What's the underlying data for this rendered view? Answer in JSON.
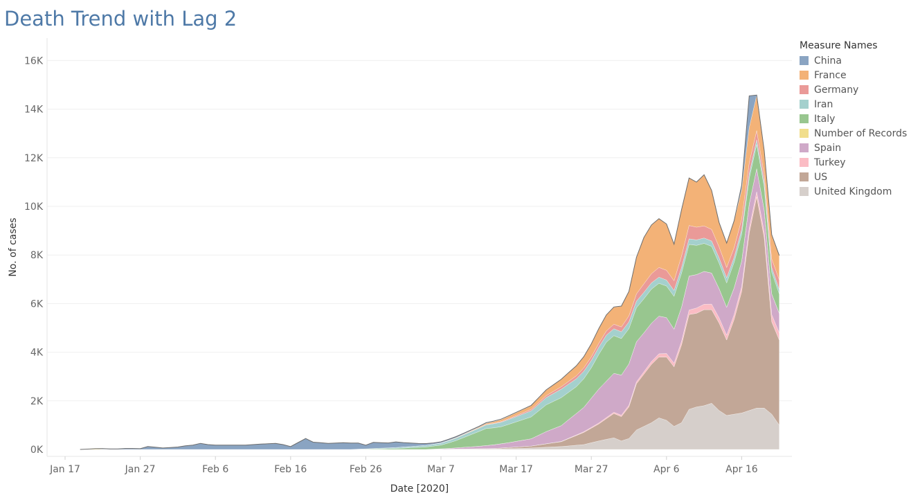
{
  "title": "Death Trend with Lag 2",
  "legend": {
    "title": "Measure Names",
    "items": [
      {
        "label": "China",
        "color": "#8aa4c2"
      },
      {
        "label": "France",
        "color": "#f3b277"
      },
      {
        "label": "Germany",
        "color": "#ea9a98"
      },
      {
        "label": "Iran",
        "color": "#a4d0cd"
      },
      {
        "label": "Italy",
        "color": "#98c68f"
      },
      {
        "label": "Number of Records",
        "color": "#f1de8c"
      },
      {
        "label": "Spain",
        "color": "#cfa9c8"
      },
      {
        "label": "Turkey",
        "color": "#fbbcc4"
      },
      {
        "label": "US",
        "color": "#c2a797"
      },
      {
        "label": "United Kingdom",
        "color": "#d6cfcb"
      }
    ]
  },
  "chart_data": {
    "type": "area",
    "stacked": true,
    "xlabel": "Date [2020]",
    "ylabel": "No. of cases",
    "ylim": [
      0,
      17000
    ],
    "yticks": [
      0,
      2000,
      4000,
      6000,
      8000,
      10000,
      12000,
      14000,
      16000
    ],
    "ytick_labels": [
      "0K",
      "2K",
      "4K",
      "6K",
      "8K",
      "10K",
      "12K",
      "14K",
      "16K"
    ],
    "xticks": [
      "2020-01-17",
      "2020-01-27",
      "2020-02-06",
      "2020-02-16",
      "2020-02-26",
      "2020-03-07",
      "2020-03-17",
      "2020-03-27",
      "2020-04-06",
      "2020-04-16"
    ],
    "xtick_labels": [
      "Jan 17",
      "Jan 27",
      "Feb 6",
      "Feb 16",
      "Feb 26",
      "Mar 7",
      "Mar 17",
      "Mar 27",
      "Apr 6",
      "Apr 16"
    ],
    "xlim": [
      "2020-01-17",
      "2020-04-24"
    ],
    "grid": true,
    "legend_position": "right",
    "stack_order": [
      "United Kingdom",
      "US",
      "Turkey",
      "Spain",
      "Number of Records",
      "Italy",
      "Iran",
      "Germany",
      "France",
      "China"
    ],
    "series": [
      {
        "name": "United Kingdom",
        "color": "#d6cfcb",
        "points": [
          [
            "2020-03-05",
            0
          ],
          [
            "2020-03-14",
            20
          ],
          [
            "2020-03-19",
            60
          ],
          [
            "2020-03-23",
            120
          ],
          [
            "2020-03-26",
            200
          ],
          [
            "2020-03-28",
            350
          ],
          [
            "2020-03-30",
            480
          ],
          [
            "2020-03-31",
            350
          ],
          [
            "2020-04-01",
            450
          ],
          [
            "2020-04-02",
            800
          ],
          [
            "2020-04-03",
            950
          ],
          [
            "2020-04-04",
            1100
          ],
          [
            "2020-04-05",
            1300
          ],
          [
            "2020-04-06",
            1200
          ],
          [
            "2020-04-07",
            950
          ],
          [
            "2020-04-08",
            1100
          ],
          [
            "2020-04-09",
            1650
          ],
          [
            "2020-04-10",
            1750
          ],
          [
            "2020-04-11",
            1800
          ],
          [
            "2020-04-12",
            1900
          ],
          [
            "2020-04-13",
            1600
          ],
          [
            "2020-04-14",
            1400
          ],
          [
            "2020-04-15",
            1450
          ],
          [
            "2020-04-16",
            1500
          ],
          [
            "2020-04-17",
            1600
          ],
          [
            "2020-04-18",
            1700
          ],
          [
            "2020-04-19",
            1700
          ],
          [
            "2020-04-20",
            1450
          ],
          [
            "2020-04-21",
            1000
          ]
        ]
      },
      {
        "name": "US",
        "color": "#c2a797",
        "points": [
          [
            "2020-03-05",
            0
          ],
          [
            "2020-03-14",
            20
          ],
          [
            "2020-03-19",
            80
          ],
          [
            "2020-03-23",
            200
          ],
          [
            "2020-03-26",
            500
          ],
          [
            "2020-03-28",
            700
          ],
          [
            "2020-03-30",
            1000
          ],
          [
            "2020-03-31",
            1000
          ],
          [
            "2020-04-01",
            1300
          ],
          [
            "2020-04-02",
            1900
          ],
          [
            "2020-04-03",
            2150
          ],
          [
            "2020-04-04",
            2400
          ],
          [
            "2020-04-05",
            2500
          ],
          [
            "2020-04-06",
            2600
          ],
          [
            "2020-04-07",
            2450
          ],
          [
            "2020-04-08",
            3200
          ],
          [
            "2020-04-09",
            3900
          ],
          [
            "2020-04-10",
            3850
          ],
          [
            "2020-04-11",
            3950
          ],
          [
            "2020-04-12",
            3850
          ],
          [
            "2020-04-13",
            3600
          ],
          [
            "2020-04-14",
            3100
          ],
          [
            "2020-04-15",
            3900
          ],
          [
            "2020-04-16",
            5000
          ],
          [
            "2020-04-17",
            7300
          ],
          [
            "2020-04-18",
            8700
          ],
          [
            "2020-04-19",
            7000
          ],
          [
            "2020-04-20",
            3800
          ],
          [
            "2020-04-21",
            3500
          ]
        ]
      },
      {
        "name": "Turkey",
        "color": "#fbbcc4",
        "points": [
          [
            "2020-03-05",
            0
          ],
          [
            "2020-03-19",
            0
          ],
          [
            "2020-03-23",
            10
          ],
          [
            "2020-03-26",
            30
          ],
          [
            "2020-03-30",
            50
          ],
          [
            "2020-04-02",
            80
          ],
          [
            "2020-04-04",
            120
          ],
          [
            "2020-04-06",
            150
          ],
          [
            "2020-04-08",
            150
          ],
          [
            "2020-04-10",
            220
          ],
          [
            "2020-04-12",
            230
          ],
          [
            "2020-04-14",
            200
          ],
          [
            "2020-04-16",
            200
          ],
          [
            "2020-04-18",
            200
          ],
          [
            "2020-04-20",
            300
          ],
          [
            "2020-04-21",
            300
          ]
        ]
      },
      {
        "name": "Spain",
        "color": "#cfa9c8",
        "points": [
          [
            "2020-03-05",
            0
          ],
          [
            "2020-03-08",
            30
          ],
          [
            "2020-03-12",
            100
          ],
          [
            "2020-03-16",
            200
          ],
          [
            "2020-03-19",
            300
          ],
          [
            "2020-03-21",
            500
          ],
          [
            "2020-03-23",
            650
          ],
          [
            "2020-03-26",
            1000
          ],
          [
            "2020-03-28",
            1400
          ],
          [
            "2020-03-30",
            1600
          ],
          [
            "2020-04-01",
            1700
          ],
          [
            "2020-04-03",
            1600
          ],
          [
            "2020-04-05",
            1550
          ],
          [
            "2020-04-07",
            1400
          ],
          [
            "2020-04-09",
            1400
          ],
          [
            "2020-04-11",
            1350
          ],
          [
            "2020-04-13",
            1200
          ],
          [
            "2020-04-15",
            1100
          ],
          [
            "2020-04-17",
            1000
          ],
          [
            "2020-04-19",
            900
          ],
          [
            "2020-04-21",
            800
          ]
        ]
      },
      {
        "name": "Number of Records",
        "color": "#f1de8c",
        "points": [
          [
            "2020-01-19",
            0
          ],
          [
            "2020-01-21",
            30
          ],
          [
            "2020-01-23",
            0
          ],
          [
            "2020-04-21",
            0
          ]
        ]
      },
      {
        "name": "Italy",
        "color": "#98c68f",
        "points": [
          [
            "2020-02-24",
            0
          ],
          [
            "2020-03-01",
            40
          ],
          [
            "2020-03-05",
            100
          ],
          [
            "2020-03-07",
            150
          ],
          [
            "2020-03-09",
            300
          ],
          [
            "2020-03-11",
            500
          ],
          [
            "2020-03-13",
            700
          ],
          [
            "2020-03-15",
            700
          ],
          [
            "2020-03-17",
            800
          ],
          [
            "2020-03-19",
            900
          ],
          [
            "2020-03-21",
            1100
          ],
          [
            "2020-03-23",
            1150
          ],
          [
            "2020-03-25",
            1100
          ],
          [
            "2020-03-27",
            1250
          ],
          [
            "2020-03-29",
            1600
          ],
          [
            "2020-03-31",
            1500
          ],
          [
            "2020-04-02",
            1400
          ],
          [
            "2020-04-04",
            1400
          ],
          [
            "2020-04-06",
            1300
          ],
          [
            "2020-04-08",
            1400
          ],
          [
            "2020-04-10",
            1200
          ],
          [
            "2020-04-12",
            1100
          ],
          [
            "2020-04-14",
            1000
          ],
          [
            "2020-04-16",
            1100
          ],
          [
            "2020-04-18",
            1000
          ],
          [
            "2020-04-20",
            900
          ],
          [
            "2020-04-21",
            800
          ]
        ]
      },
      {
        "name": "Iran",
        "color": "#a4d0cd",
        "points": [
          [
            "2020-02-24",
            0
          ],
          [
            "2020-03-01",
            40
          ],
          [
            "2020-03-07",
            80
          ],
          [
            "2020-03-13",
            150
          ],
          [
            "2020-03-19",
            250
          ],
          [
            "2020-03-23",
            350
          ],
          [
            "2020-03-27",
            300
          ],
          [
            "2020-03-31",
            280
          ],
          [
            "2020-04-04",
            260
          ],
          [
            "2020-04-08",
            230
          ],
          [
            "2020-04-12",
            220
          ],
          [
            "2020-04-16",
            200
          ],
          [
            "2020-04-21",
            180
          ]
        ]
      },
      {
        "name": "Germany",
        "color": "#ea9a98",
        "points": [
          [
            "2020-03-09",
            0
          ],
          [
            "2020-03-14",
            20
          ],
          [
            "2020-03-19",
            60
          ],
          [
            "2020-03-23",
            100
          ],
          [
            "2020-03-27",
            150
          ],
          [
            "2020-03-31",
            200
          ],
          [
            "2020-04-03",
            350
          ],
          [
            "2020-04-05",
            400
          ],
          [
            "2020-04-07",
            400
          ],
          [
            "2020-04-09",
            550
          ],
          [
            "2020-04-11",
            500
          ],
          [
            "2020-04-13",
            450
          ],
          [
            "2020-04-15",
            400
          ],
          [
            "2020-04-17",
            450
          ],
          [
            "2020-04-19",
            300
          ],
          [
            "2020-04-21",
            400
          ]
        ]
      },
      {
        "name": "France",
        "color": "#f3b277",
        "points": [
          [
            "2020-03-05",
            0
          ],
          [
            "2020-03-12",
            30
          ],
          [
            "2020-03-16",
            100
          ],
          [
            "2020-03-19",
            150
          ],
          [
            "2020-03-23",
            300
          ],
          [
            "2020-03-26",
            450
          ],
          [
            "2020-03-28",
            600
          ],
          [
            "2020-03-30",
            700
          ],
          [
            "2020-04-01",
            1000
          ],
          [
            "2020-04-02",
            1500
          ],
          [
            "2020-04-03",
            1900
          ],
          [
            "2020-04-04",
            2000
          ],
          [
            "2020-04-05",
            2000
          ],
          [
            "2020-04-06",
            1900
          ],
          [
            "2020-04-07",
            1500
          ],
          [
            "2020-04-08",
            1900
          ],
          [
            "2020-04-09",
            1950
          ],
          [
            "2020-04-10",
            1850
          ],
          [
            "2020-04-11",
            2100
          ],
          [
            "2020-04-12",
            1600
          ],
          [
            "2020-04-13",
            1000
          ],
          [
            "2020-04-14",
            1000
          ],
          [
            "2020-04-15",
            1100
          ],
          [
            "2020-04-16",
            1200
          ],
          [
            "2020-04-17",
            1450
          ],
          [
            "2020-04-18",
            1450
          ],
          [
            "2020-04-19",
            1000
          ],
          [
            "2020-04-20",
            1000
          ],
          [
            "2020-04-21",
            1000
          ]
        ]
      },
      {
        "name": "China",
        "color": "#8aa4c2",
        "points": [
          [
            "2020-01-21",
            0
          ],
          [
            "2020-01-22",
            20
          ],
          [
            "2020-01-24",
            20
          ],
          [
            "2020-01-25",
            40
          ],
          [
            "2020-01-26",
            40
          ],
          [
            "2020-01-27",
            30
          ],
          [
            "2020-01-28",
            120
          ],
          [
            "2020-01-30",
            60
          ],
          [
            "2020-02-01",
            100
          ],
          [
            "2020-02-02",
            150
          ],
          [
            "2020-02-03",
            180
          ],
          [
            "2020-02-04",
            250
          ],
          [
            "2020-02-05",
            200
          ],
          [
            "2020-02-06",
            180
          ],
          [
            "2020-02-08",
            180
          ],
          [
            "2020-02-10",
            180
          ],
          [
            "2020-02-12",
            220
          ],
          [
            "2020-02-14",
            250
          ],
          [
            "2020-02-15",
            200
          ],
          [
            "2020-02-16",
            120
          ],
          [
            "2020-02-18",
            450
          ],
          [
            "2020-02-19",
            300
          ],
          [
            "2020-02-21",
            250
          ],
          [
            "2020-02-23",
            280
          ],
          [
            "2020-02-25",
            250
          ],
          [
            "2020-02-26",
            150
          ],
          [
            "2020-02-27",
            250
          ],
          [
            "2020-02-29",
            200
          ],
          [
            "2020-03-01",
            230
          ],
          [
            "2020-03-02",
            180
          ],
          [
            "2020-03-04",
            100
          ],
          [
            "2020-03-06",
            50
          ],
          [
            "2020-03-09",
            40
          ],
          [
            "2020-03-12",
            30
          ],
          [
            "2020-03-15",
            20
          ],
          [
            "2020-03-20",
            10
          ],
          [
            "2020-04-13",
            5
          ],
          [
            "2020-04-14",
            5
          ],
          [
            "2020-04-15",
            5
          ],
          [
            "2020-04-16",
            200
          ],
          [
            "2020-04-17",
            1300
          ],
          [
            "2020-04-18",
            10
          ],
          [
            "2020-04-19",
            0
          ],
          [
            "2020-04-21",
            0
          ]
        ]
      }
    ]
  }
}
